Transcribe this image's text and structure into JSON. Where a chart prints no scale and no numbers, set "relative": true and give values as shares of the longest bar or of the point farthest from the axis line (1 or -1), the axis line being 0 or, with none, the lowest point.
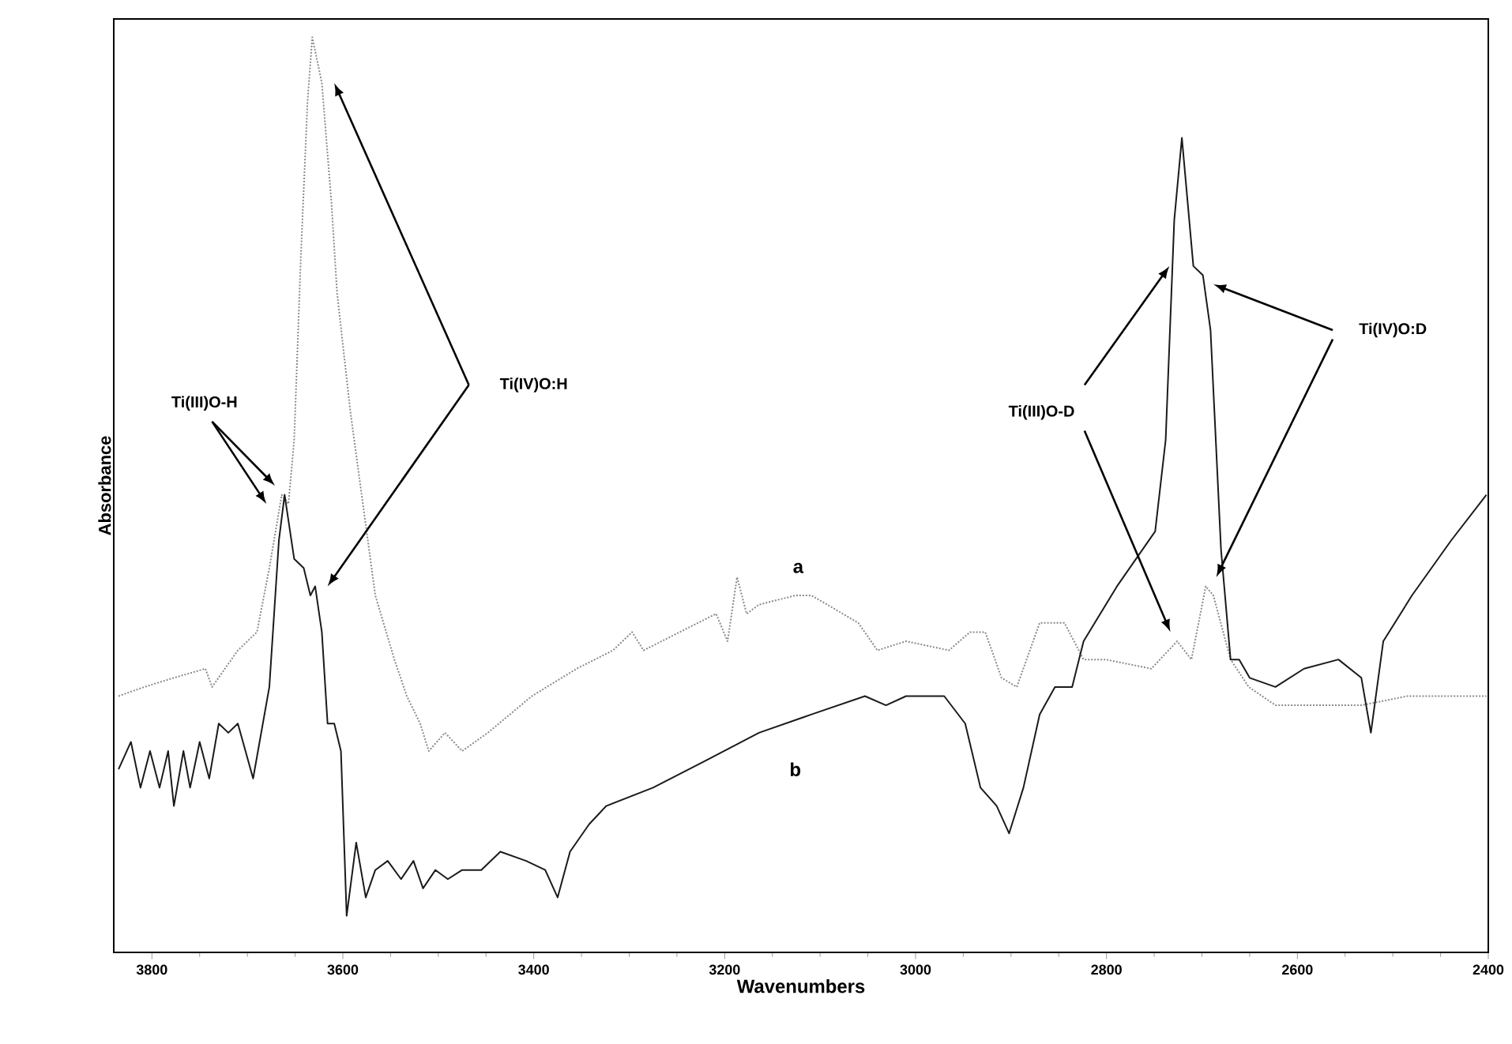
{
  "chart_data": {
    "type": "line",
    "relative": true,
    "xlabel": "Wavenumbers",
    "ylabel": "Absorbance",
    "xlim": [
      3840,
      2400
    ],
    "xticks": [
      3800,
      3600,
      3400,
      3200,
      3000,
      2800,
      2600,
      2400
    ],
    "annotations": [
      "Ti(III)O-H",
      "Ti(IV)O:H",
      "Ti(III)O-D",
      "Ti(IV)O:D"
    ],
    "legend": false,
    "grid": false,
    "series": [
      {
        "name": "a",
        "color": "#8a8a8a",
        "line_style": "dotted",
        "x": [
          3835,
          3808,
          3777,
          3744,
          3737,
          3710,
          3690,
          3677,
          3664,
          3657,
          3651,
          3644,
          3637,
          3632,
          3622,
          3612,
          3606,
          3592,
          3579,
          3566,
          3546,
          3533,
          3519,
          3510,
          3493,
          3475,
          3448,
          3402,
          3355,
          3317,
          3297,
          3285,
          3247,
          3209,
          3197,
          3187,
          3177,
          3164,
          3126,
          3109,
          3060,
          3040,
          3010,
          2965,
          2943,
          2927,
          2910,
          2894,
          2870,
          2844,
          2824,
          2801,
          2753,
          2726,
          2711,
          2696,
          2688,
          2670,
          2651,
          2623,
          2582,
          2533,
          2485,
          2439,
          2402
        ],
        "values": [
          0.28,
          0.29,
          0.3,
          0.31,
          0.29,
          0.33,
          0.35,
          0.42,
          0.5,
          0.49,
          0.56,
          0.76,
          0.93,
          1.0,
          0.95,
          0.82,
          0.72,
          0.59,
          0.49,
          0.39,
          0.32,
          0.28,
          0.25,
          0.22,
          0.24,
          0.22,
          0.24,
          0.28,
          0.31,
          0.33,
          0.35,
          0.33,
          0.35,
          0.37,
          0.34,
          0.41,
          0.37,
          0.38,
          0.39,
          0.39,
          0.36,
          0.33,
          0.34,
          0.33,
          0.35,
          0.35,
          0.3,
          0.29,
          0.36,
          0.36,
          0.32,
          0.32,
          0.31,
          0.34,
          0.32,
          0.4,
          0.39,
          0.32,
          0.29,
          0.27,
          0.27,
          0.27,
          0.28,
          0.28,
          0.28
        ]
      },
      {
        "name": "b",
        "color": "#1a1a1a",
        "line_style": "solid",
        "x": [
          3835,
          3822,
          3812,
          3802,
          3792,
          3783,
          3777,
          3767,
          3760,
          3750,
          3740,
          3730,
          3720,
          3710,
          3694,
          3677,
          3667,
          3661,
          3651,
          3641,
          3634,
          3629,
          3622,
          3616,
          3609,
          3602,
          3596,
          3586,
          3576,
          3566,
          3553,
          3539,
          3526,
          3516,
          3503,
          3490,
          3475,
          3455,
          3435,
          3408,
          3388,
          3375,
          3362,
          3342,
          3324,
          3275,
          3219,
          3164,
          3109,
          3053,
          3031,
          3010,
          2970,
          2948,
          2932,
          2915,
          2902,
          2887,
          2870,
          2854,
          2836,
          2824,
          2789,
          2749,
          2738,
          2729,
          2721,
          2709,
          2699,
          2691,
          2680,
          2670,
          2661,
          2650,
          2623,
          2593,
          2557,
          2533,
          2523,
          2510,
          2480,
          2439,
          2402
        ],
        "values": [
          0.2,
          0.23,
          0.18,
          0.22,
          0.18,
          0.22,
          0.16,
          0.22,
          0.18,
          0.23,
          0.19,
          0.25,
          0.24,
          0.25,
          0.19,
          0.29,
          0.45,
          0.5,
          0.43,
          0.42,
          0.39,
          0.4,
          0.35,
          0.25,
          0.25,
          0.22,
          0.04,
          0.12,
          0.06,
          0.09,
          0.1,
          0.08,
          0.1,
          0.07,
          0.09,
          0.08,
          0.09,
          0.09,
          0.11,
          0.1,
          0.09,
          0.06,
          0.11,
          0.14,
          0.16,
          0.18,
          0.21,
          0.24,
          0.26,
          0.28,
          0.27,
          0.28,
          0.28,
          0.25,
          0.18,
          0.16,
          0.13,
          0.18,
          0.26,
          0.29,
          0.29,
          0.34,
          0.4,
          0.46,
          0.56,
          0.8,
          0.89,
          0.75,
          0.74,
          0.68,
          0.44,
          0.32,
          0.32,
          0.3,
          0.29,
          0.31,
          0.32,
          0.3,
          0.24,
          0.34,
          0.39,
          0.45,
          0.5
        ]
      }
    ]
  }
}
